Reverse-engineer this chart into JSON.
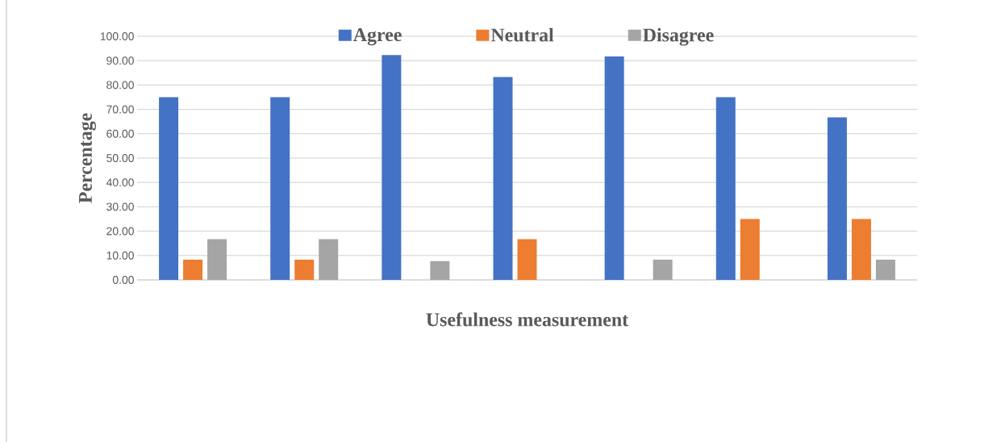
{
  "chart_data": {
    "type": "bar",
    "xlabel": "Usefulness measurement",
    "ylabel": "Percentage",
    "categories": [
      null,
      null,
      null,
      null,
      null,
      null,
      null
    ],
    "series": [
      {
        "name": "Agree",
        "color": "#4472c4",
        "values": [
          75.0,
          75.0,
          92.3,
          83.3,
          91.7,
          75.0,
          66.7
        ]
      },
      {
        "name": "Neutral",
        "color": "#ed7d31",
        "values": [
          8.3,
          8.3,
          0,
          16.7,
          0,
          25.0,
          25.0
        ]
      },
      {
        "name": "Disagree",
        "color": "#a5a5a5",
        "values": [
          16.7,
          16.7,
          7.7,
          0,
          8.3,
          0,
          8.3
        ]
      }
    ],
    "ylim": [
      0,
      100
    ],
    "yticks": [
      {
        "value": 0,
        "label": "0.00"
      },
      {
        "value": 10,
        "label": "10.00"
      },
      {
        "value": 20,
        "label": "20.00"
      },
      {
        "value": 30,
        "label": "30.00"
      },
      {
        "value": 40,
        "label": "40.00"
      },
      {
        "value": 50,
        "label": "50.00"
      },
      {
        "value": 60,
        "label": "60.00"
      },
      {
        "value": 70,
        "label": "70.00"
      },
      {
        "value": 80,
        "label": "80.00"
      },
      {
        "value": 90,
        "label": "90.00"
      },
      {
        "value": 100,
        "label": "100.00"
      }
    ],
    "grid": "y",
    "legend": "top"
  }
}
